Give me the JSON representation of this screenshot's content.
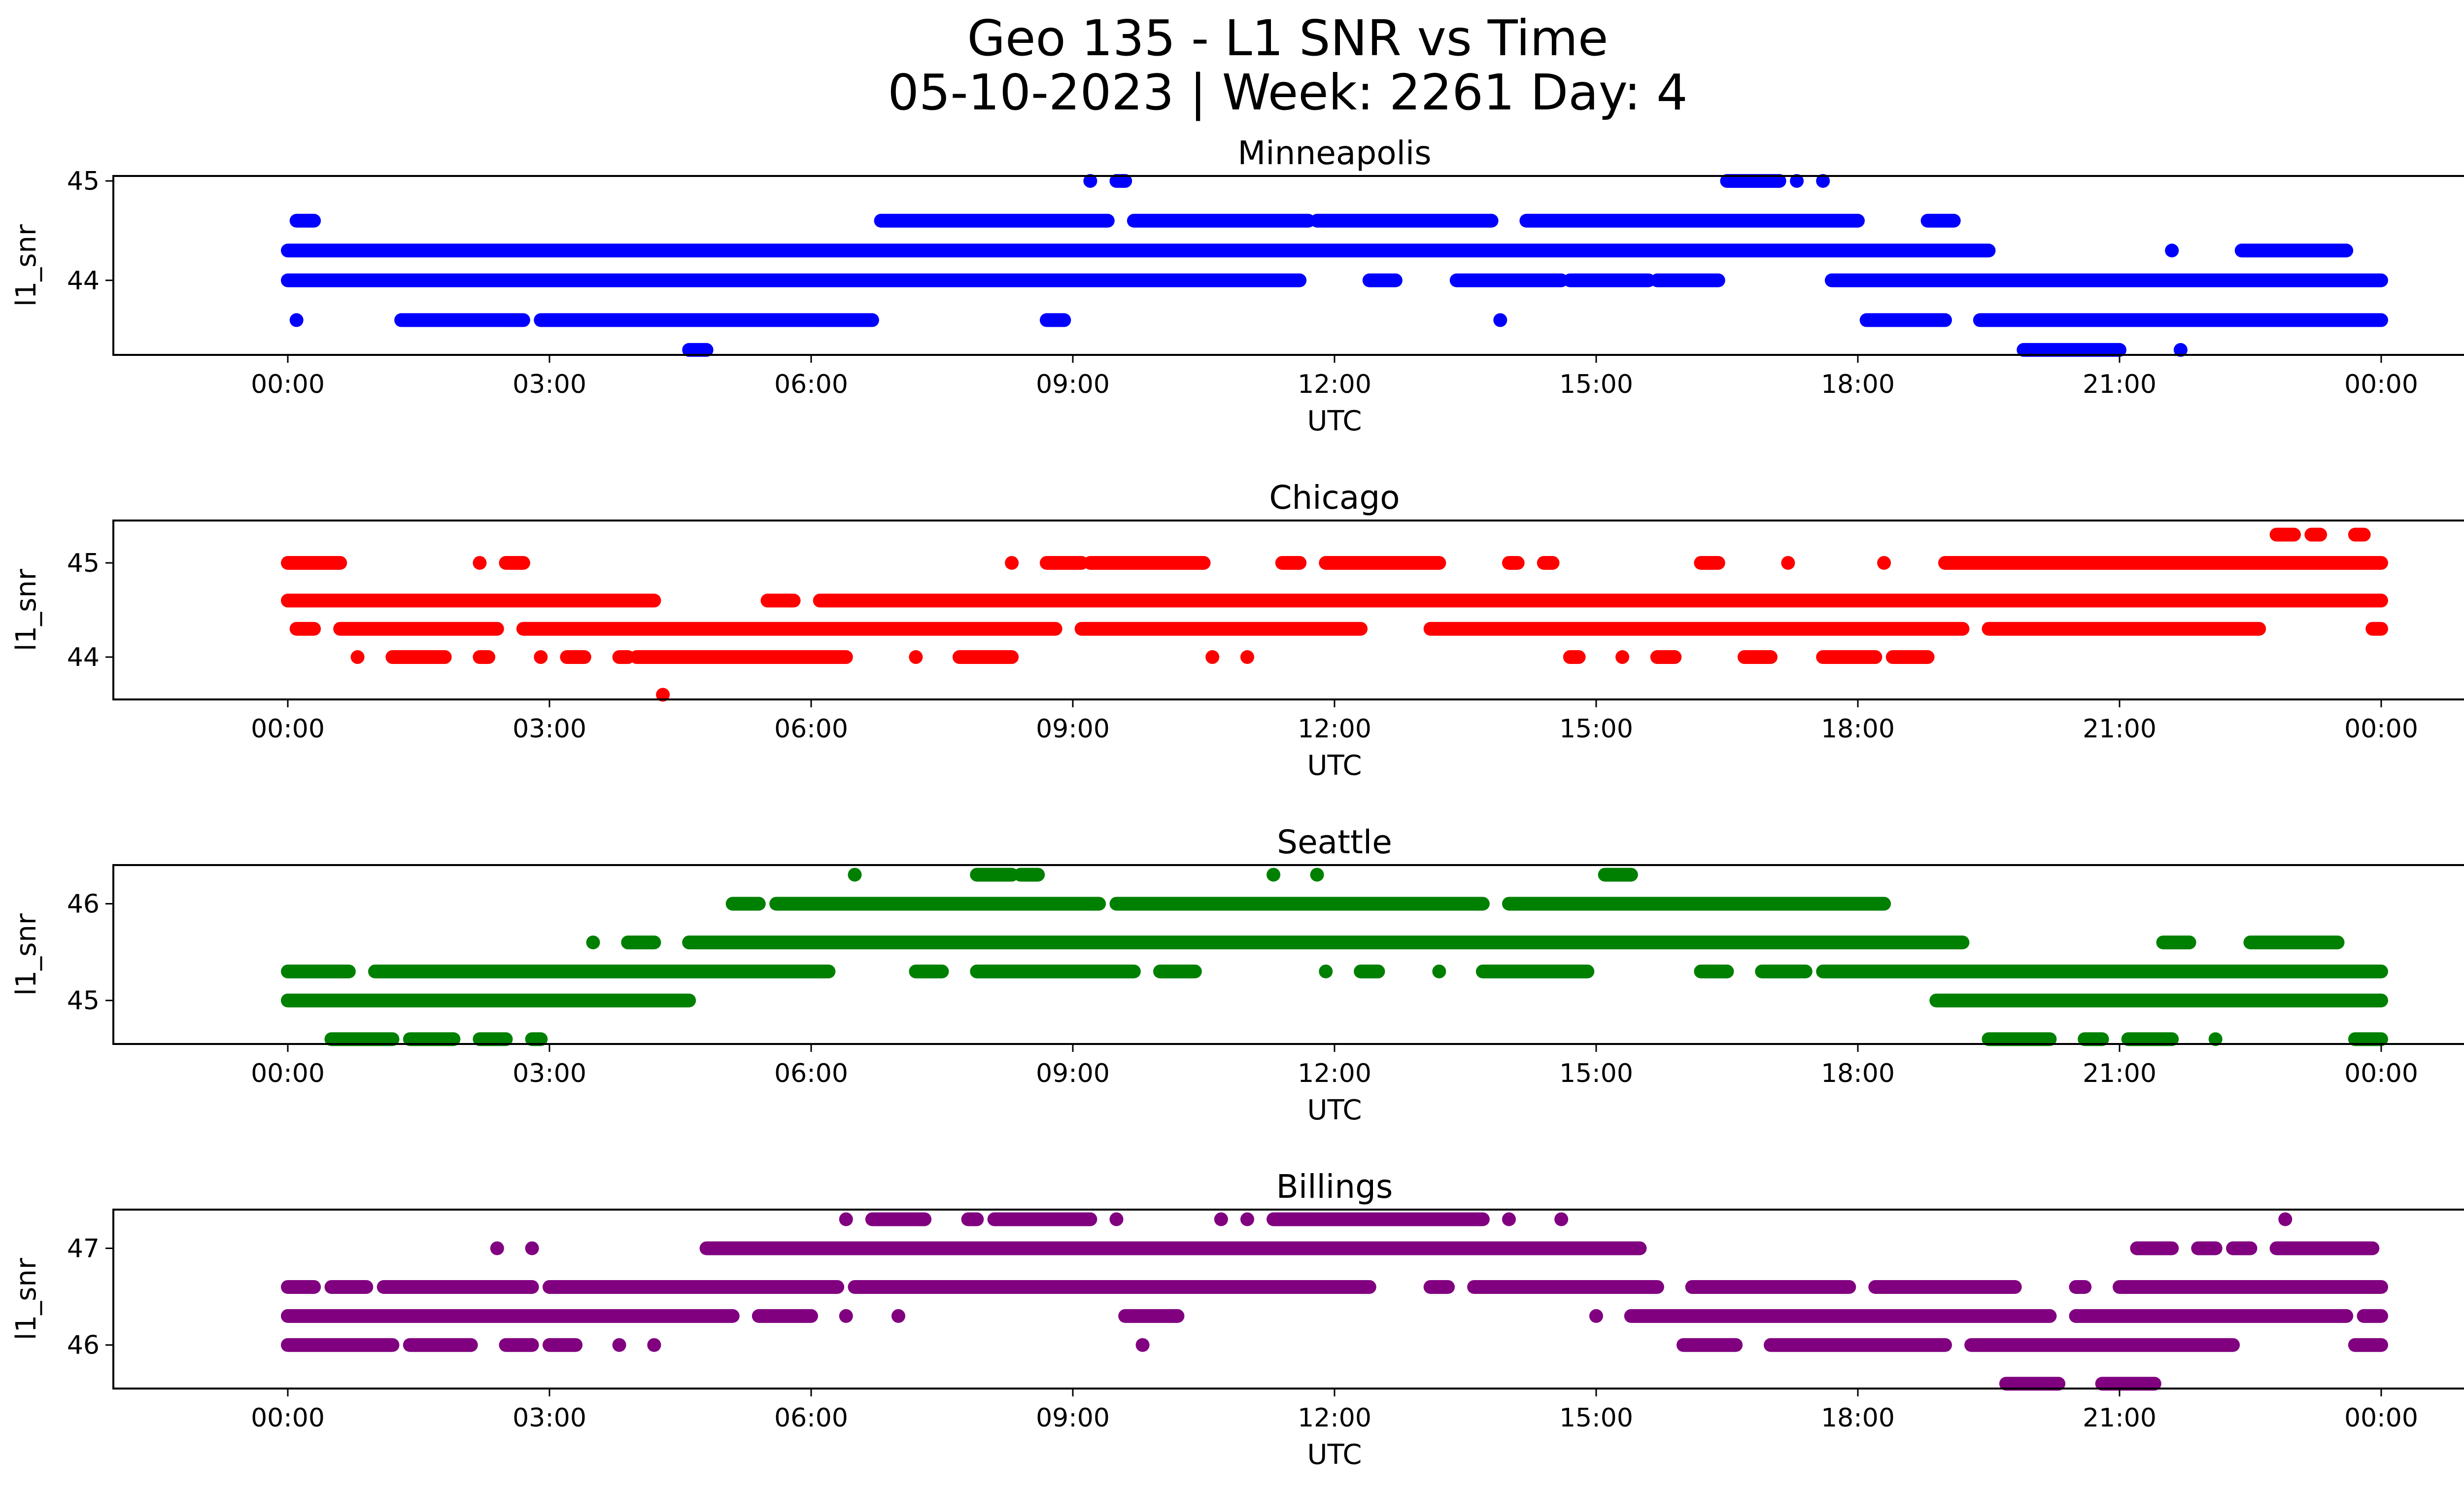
{
  "figure": {
    "title_line1": "Geo 135 - L1 SNR vs Time",
    "title_line2": "05-10-2023 | Week: 2261 Day: 4"
  },
  "chart_data": [
    {
      "type": "scatter",
      "title": "Minneapolis",
      "xlabel": "UTC",
      "ylabel": "l1_snr",
      "color": "#0000ff",
      "xlim": [
        "00:00",
        "24:00"
      ],
      "ylim": [
        43.25,
        45.05
      ],
      "x_ticks": [
        "00:00",
        "03:00",
        "06:00",
        "09:00",
        "12:00",
        "15:00",
        "18:00",
        "21:00",
        "00:00"
      ],
      "y_ticks": [
        44,
        45
      ],
      "bands": [
        {
          "y": 44.3,
          "segments": [
            [
              0.0,
              19.5
            ],
            [
              21.6,
              21.6
            ],
            [
              22.4,
              23.6
            ]
          ]
        },
        {
          "y": 44.0,
          "segments": [
            [
              0.0,
              11.6
            ],
            [
              12.4,
              12.7
            ],
            [
              13.4,
              14.6
            ],
            [
              14.7,
              15.6
            ],
            [
              15.7,
              16.4
            ],
            [
              17.7,
              24.0
            ]
          ]
        },
        {
          "y": 43.6,
          "segments": [
            [
              0.1,
              0.1
            ],
            [
              1.3,
              2.7
            ],
            [
              2.9,
              6.7
            ],
            [
              8.7,
              8.9
            ],
            [
              13.9,
              13.9
            ],
            [
              18.1,
              19.0
            ],
            [
              19.4,
              24.0
            ]
          ]
        },
        {
          "y": 44.6,
          "segments": [
            [
              0.1,
              0.3
            ],
            [
              6.8,
              9.4
            ],
            [
              9.7,
              11.7
            ],
            [
              11.8,
              13.8
            ],
            [
              14.2,
              18.0
            ],
            [
              18.8,
              19.1
            ]
          ]
        },
        {
          "y": 45.0,
          "segments": [
            [
              9.2,
              9.2
            ],
            [
              9.5,
              9.6
            ],
            [
              16.5,
              17.1
            ],
            [
              17.3,
              17.3
            ],
            [
              17.6,
              17.6
            ]
          ]
        },
        {
          "y": 43.3,
          "segments": [
            [
              4.6,
              4.8
            ],
            [
              19.9,
              21.0
            ],
            [
              21.7,
              21.7
            ]
          ]
        }
      ]
    },
    {
      "type": "scatter",
      "title": "Chicago",
      "xlabel": "UTC",
      "ylabel": "l1_snr",
      "color": "#ff0000",
      "xlim": [
        "00:00",
        "24:00"
      ],
      "ylim": [
        43.55,
        45.45
      ],
      "x_ticks": [
        "00:00",
        "03:00",
        "06:00",
        "09:00",
        "12:00",
        "15:00",
        "18:00",
        "21:00",
        "00:00"
      ],
      "y_ticks": [
        44,
        45
      ],
      "bands": [
        {
          "y": 44.6,
          "segments": [
            [
              0.0,
              4.2
            ],
            [
              5.5,
              5.8
            ],
            [
              6.1,
              24.0
            ]
          ]
        },
        {
          "y": 44.3,
          "segments": [
            [
              0.1,
              0.3
            ],
            [
              0.6,
              2.4
            ],
            [
              2.7,
              8.8
            ],
            [
              9.1,
              12.3
            ],
            [
              13.1,
              19.2
            ],
            [
              19.5,
              22.6
            ],
            [
              23.9,
              24.0
            ]
          ]
        },
        {
          "y": 44.0,
          "segments": [
            [
              0.8,
              0.8
            ],
            [
              1.2,
              1.8
            ],
            [
              2.2,
              2.3
            ],
            [
              2.9,
              2.9
            ],
            [
              3.2,
              3.4
            ],
            [
              3.8,
              3.9
            ],
            [
              4.0,
              6.4
            ],
            [
              7.2,
              7.2
            ],
            [
              7.7,
              8.3
            ],
            [
              10.6,
              10.6
            ],
            [
              11.0,
              11.0
            ],
            [
              14.7,
              14.8
            ],
            [
              15.3,
              15.3
            ],
            [
              15.7,
              15.9
            ],
            [
              16.7,
              17.0
            ],
            [
              17.6,
              18.2
            ],
            [
              18.4,
              18.8
            ]
          ]
        },
        {
          "y": 45.0,
          "segments": [
            [
              0.0,
              0.6
            ],
            [
              2.2,
              2.2
            ],
            [
              2.5,
              2.7
            ],
            [
              8.3,
              8.3
            ],
            [
              8.7,
              9.1
            ],
            [
              9.2,
              10.5
            ],
            [
              11.4,
              11.6
            ],
            [
              11.9,
              13.2
            ],
            [
              14.0,
              14.1
            ],
            [
              14.4,
              14.5
            ],
            [
              16.2,
              16.4
            ],
            [
              17.2,
              17.2
            ],
            [
              18.3,
              18.3
            ],
            [
              19.0,
              24.0
            ]
          ]
        },
        {
          "y": 45.3,
          "segments": [
            [
              22.8,
              23.0
            ],
            [
              23.2,
              23.3
            ],
            [
              23.7,
              23.8
            ]
          ]
        },
        {
          "y": 43.6,
          "segments": [
            [
              4.3,
              4.3
            ]
          ]
        }
      ]
    },
    {
      "type": "scatter",
      "title": "Seattle",
      "xlabel": "UTC",
      "ylabel": "l1_snr",
      "color": "#008000",
      "xlim": [
        "00:00",
        "24:00"
      ],
      "ylim": [
        44.55,
        46.4
      ],
      "x_ticks": [
        "00:00",
        "03:00",
        "06:00",
        "09:00",
        "12:00",
        "15:00",
        "18:00",
        "21:00",
        "00:00"
      ],
      "y_ticks": [
        45,
        46
      ],
      "bands": [
        {
          "y": 45.0,
          "segments": [
            [
              0.0,
              4.6
            ],
            [
              18.9,
              24.0
            ]
          ]
        },
        {
          "y": 45.3,
          "segments": [
            [
              0.0,
              0.7
            ],
            [
              1.0,
              6.2
            ],
            [
              7.2,
              7.5
            ],
            [
              7.9,
              9.7
            ],
            [
              10.0,
              10.4
            ],
            [
              11.9,
              11.9
            ],
            [
              12.3,
              12.5
            ],
            [
              13.2,
              13.2
            ],
            [
              13.7,
              14.9
            ],
            [
              16.2,
              16.5
            ],
            [
              16.9,
              17.4
            ],
            [
              17.6,
              24.0
            ]
          ]
        },
        {
          "y": 44.6,
          "segments": [
            [
              0.5,
              1.2
            ],
            [
              1.4,
              1.9
            ],
            [
              2.2,
              2.5
            ],
            [
              2.8,
              2.9
            ],
            [
              19.5,
              20.2
            ],
            [
              20.6,
              20.8
            ],
            [
              21.1,
              21.6
            ],
            [
              22.1,
              22.1
            ],
            [
              23.7,
              24.0
            ]
          ]
        },
        {
          "y": 45.6,
          "segments": [
            [
              3.5,
              3.5
            ],
            [
              3.9,
              4.2
            ],
            [
              4.6,
              19.2
            ],
            [
              21.5,
              21.8
            ],
            [
              22.5,
              23.5
            ]
          ]
        },
        {
          "y": 46.0,
          "segments": [
            [
              5.1,
              5.4
            ],
            [
              5.6,
              9.3
            ],
            [
              9.5,
              13.7
            ],
            [
              14.0,
              18.3
            ]
          ]
        },
        {
          "y": 46.3,
          "segments": [
            [
              6.5,
              6.5
            ],
            [
              7.9,
              8.3
            ],
            [
              8.4,
              8.6
            ],
            [
              11.3,
              11.3
            ],
            [
              11.8,
              11.8
            ],
            [
              15.1,
              15.4
            ]
          ]
        }
      ]
    },
    {
      "type": "scatter",
      "title": "Billings",
      "xlabel": "UTC",
      "ylabel": "l1_snr",
      "color": "#800080",
      "xlim": [
        "00:00",
        "24:00"
      ],
      "ylim": [
        45.55,
        47.4
      ],
      "x_ticks": [
        "00:00",
        "03:00",
        "06:00",
        "09:00",
        "12:00",
        "15:00",
        "18:00",
        "21:00",
        "00:00"
      ],
      "y_ticks": [
        46,
        47
      ],
      "bands": [
        {
          "y": 46.3,
          "segments": [
            [
              0.0,
              5.1
            ],
            [
              5.4,
              6.0
            ],
            [
              6.4,
              6.4
            ],
            [
              7.0,
              7.0
            ],
            [
              9.6,
              10.2
            ],
            [
              15.0,
              15.0
            ],
            [
              15.4,
              20.2
            ],
            [
              20.5,
              23.6
            ],
            [
              23.8,
              24.0
            ]
          ]
        },
        {
          "y": 46.0,
          "segments": [
            [
              0.0,
              1.2
            ],
            [
              1.4,
              2.1
            ],
            [
              2.5,
              2.8
            ],
            [
              3.0,
              3.3
            ],
            [
              3.8,
              3.8
            ],
            [
              4.2,
              4.2
            ],
            [
              9.8,
              9.8
            ],
            [
              16.0,
              16.6
            ],
            [
              17.0,
              19.0
            ],
            [
              19.3,
              22.3
            ],
            [
              23.7,
              24.0
            ]
          ]
        },
        {
          "y": 46.6,
          "segments": [
            [
              0.0,
              0.3
            ],
            [
              0.5,
              0.9
            ],
            [
              1.1,
              2.8
            ],
            [
              3.0,
              6.3
            ],
            [
              6.5,
              12.4
            ],
            [
              13.1,
              13.3
            ],
            [
              13.6,
              15.7
            ],
            [
              16.1,
              17.9
            ],
            [
              18.2,
              19.8
            ],
            [
              20.5,
              20.6
            ],
            [
              21.0,
              24.0
            ]
          ]
        },
        {
          "y": 47.0,
          "segments": [
            [
              2.4,
              2.4
            ],
            [
              2.8,
              2.8
            ],
            [
              4.8,
              15.5
            ],
            [
              21.2,
              21.6
            ],
            [
              21.9,
              22.1
            ],
            [
              22.3,
              22.5
            ],
            [
              22.8,
              23.9
            ]
          ]
        },
        {
          "y": 47.3,
          "segments": [
            [
              6.4,
              6.4
            ],
            [
              6.7,
              7.3
            ],
            [
              7.8,
              7.9
            ],
            [
              8.1,
              9.2
            ],
            [
              9.5,
              9.5
            ],
            [
              10.7,
              10.7
            ],
            [
              11.0,
              11.0
            ],
            [
              11.3,
              13.7
            ],
            [
              14.0,
              14.0
            ],
            [
              14.6,
              14.6
            ],
            [
              22.9,
              22.9
            ]
          ]
        },
        {
          "y": 45.6,
          "segments": [
            [
              19.7,
              20.3
            ],
            [
              20.8,
              21.4
            ]
          ]
        }
      ]
    }
  ]
}
